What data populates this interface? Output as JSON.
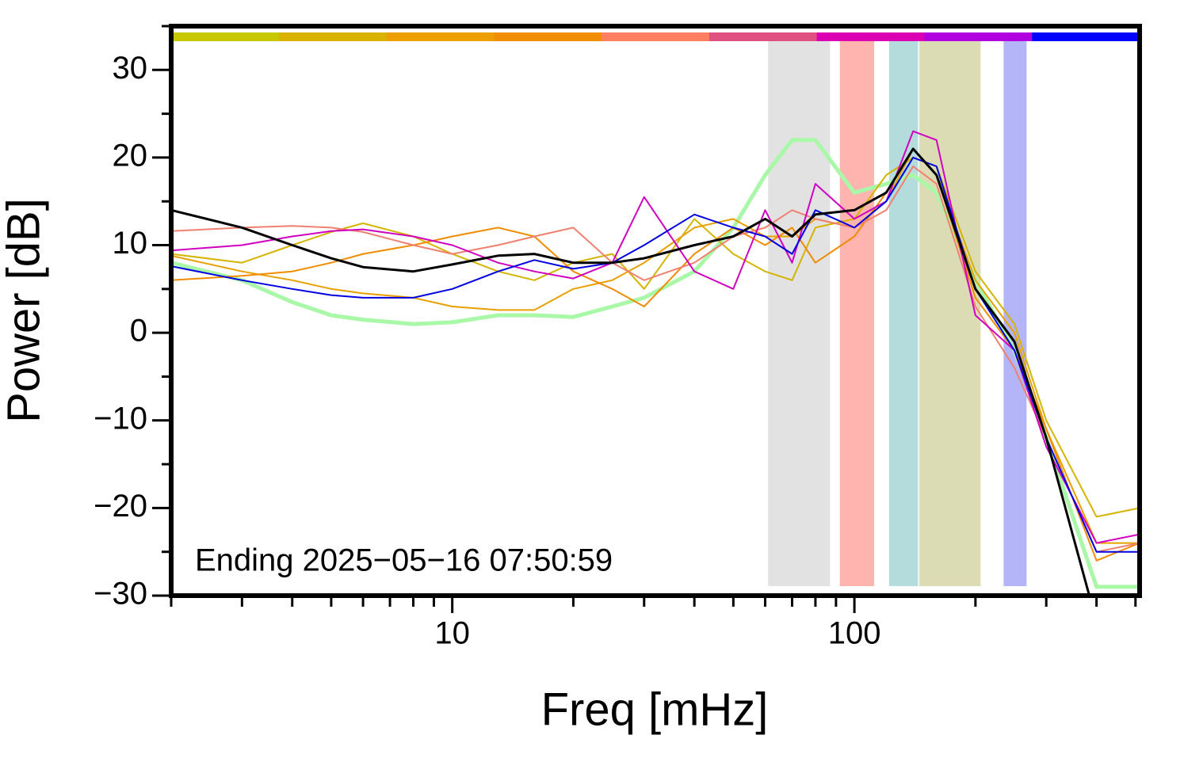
{
  "chart_data": {
    "type": "line",
    "xlabel": "Freq [mHz]",
    "ylabel": "Power [dB]",
    "annotation": "Ending 2025−05−16 07:50:59",
    "xlog": true,
    "xlim": [
      2,
      512
    ],
    "ylim": [
      -30,
      35
    ],
    "xticks": [
      10,
      100
    ],
    "xminorticks": [
      2,
      3,
      4,
      5,
      6,
      7,
      8,
      9,
      20,
      30,
      40,
      50,
      60,
      70,
      80,
      90,
      200,
      300,
      400,
      500
    ],
    "yticks": [
      {
        "value": -30,
        "label": "−30"
      },
      {
        "value": -20,
        "label": "−20"
      },
      {
        "value": -10,
        "label": "−10"
      },
      0,
      10,
      20,
      30
    ],
    "yminorticks": [
      -25,
      -15,
      -5,
      5,
      15,
      25,
      35
    ],
    "top_bar_colors": [
      "#c8c800",
      "#d8b400",
      "#eca000",
      "#f28c00",
      "#ff7f60",
      "#e05080",
      "#dc00b4",
      "#b000e0",
      "#0000ff"
    ],
    "bands": [
      {
        "from": 61,
        "to": 87,
        "color": "#e2e2e2"
      },
      {
        "from": 92,
        "to": 112,
        "color": "#ffb4b0"
      },
      {
        "from": 122,
        "to": 144,
        "color": "#b4dcdc"
      },
      {
        "from": 145,
        "to": 206,
        "color": "#dcdcb4"
      },
      {
        "from": 235,
        "to": 268,
        "color": "#b4b4f8"
      }
    ],
    "x": [
      2,
      3,
      4,
      5,
      6,
      8,
      10,
      13,
      16,
      20,
      25,
      30,
      40,
      50,
      60,
      70,
      80,
      100,
      120,
      140,
      160,
      200,
      250,
      300,
      400,
      512
    ],
    "series": [
      {
        "color": "#a8f8a8",
        "width": 5,
        "values": [
          8,
          6,
          3.5,
          2,
          1.5,
          1,
          1.2,
          2,
          2,
          1.8,
          3,
          4,
          7,
          12,
          18,
          22,
          22,
          16,
          17,
          18,
          16,
          6,
          -2,
          -12,
          -29,
          -29
        ]
      },
      {
        "color": "#d4b400",
        "width": 2,
        "values": [
          9,
          8,
          10,
          11.5,
          12.5,
          11,
          9,
          7,
          6,
          8,
          9,
          5,
          13,
          9,
          7,
          6,
          12,
          13,
          18,
          20,
          19,
          7,
          1,
          -10,
          -21,
          -20
        ]
      },
      {
        "color": "#e8a000",
        "width": 2,
        "values": [
          8.8,
          7,
          6,
          5,
          4.5,
          4,
          3,
          2.6,
          2.6,
          5,
          6,
          8,
          12,
          13,
          11,
          11,
          13,
          12,
          15,
          21,
          18,
          6,
          0,
          -11,
          -24,
          -24
        ]
      },
      {
        "color": "#f08c00",
        "width": 2,
        "values": [
          6,
          6.5,
          7,
          8,
          9,
          10,
          11,
          12,
          11,
          7,
          5,
          3,
          9,
          12,
          10,
          12,
          8,
          11,
          16,
          21,
          18,
          4,
          -2,
          -11,
          -26,
          -24
        ]
      },
      {
        "color": "#f08070",
        "width": 2,
        "values": [
          11.6,
          12,
          12.2,
          12,
          11.5,
          10,
          9,
          10,
          11,
          12,
          8,
          6,
          8,
          11,
          12,
          14,
          13,
          12,
          14,
          19,
          17,
          3,
          -4,
          -12,
          -25,
          -24
        ]
      },
      {
        "color": "#d000c0",
        "width": 2,
        "values": [
          9.4,
          10,
          11,
          11.6,
          11.8,
          11,
          10,
          8,
          7,
          6.2,
          8,
          15.5,
          7,
          5,
          14,
          8,
          17,
          13,
          15,
          23,
          22,
          2,
          -2,
          -13,
          -24,
          -23
        ]
      },
      {
        "color": "#0000e0",
        "width": 2,
        "values": [
          7.6,
          6,
          5,
          4.3,
          4,
          4,
          5,
          7,
          8.3,
          7.3,
          8,
          10,
          13.5,
          12,
          11,
          9,
          14,
          12,
          15,
          20,
          19,
          5,
          -2,
          -12,
          -25,
          -25
        ]
      },
      {
        "color": "#000000",
        "width": 3,
        "values": [
          14,
          12,
          10,
          8.5,
          7.5,
          7,
          7.8,
          8.8,
          9,
          8,
          8,
          8.5,
          10,
          11,
          13,
          11,
          13.5,
          14,
          16,
          21,
          18,
          5,
          -1,
          -12,
          -33,
          null
        ]
      }
    ]
  }
}
